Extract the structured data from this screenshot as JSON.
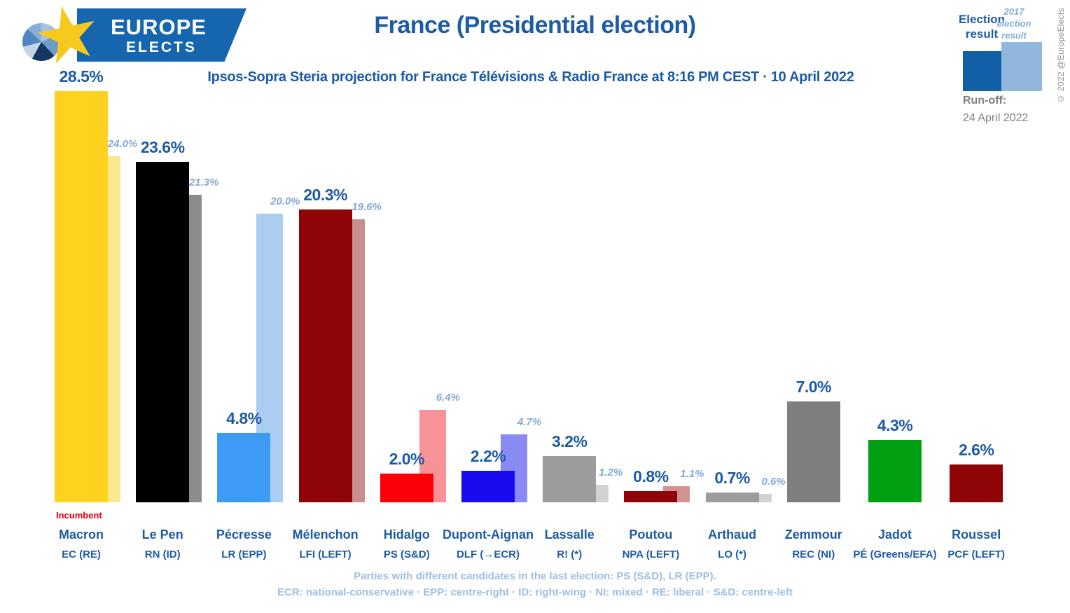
{
  "logo": {
    "line1": "EUROPE",
    "line2": "ELECTS"
  },
  "header": {
    "title": "France (Presidential election)",
    "subtitle": "Ipsos-Sopra Steria projection for France Télévisions & Radio France at 8:16 PM CEST · 10 April 2022"
  },
  "legend": {
    "current_label": "Election result",
    "previous_label": "2017 election result",
    "current_color": "#1160a8",
    "previous_color": "#92b7dc",
    "runoff_label": "Run-off:",
    "runoff_date": "24 April 2022",
    "copyright": "© 2022 @EuropeElects"
  },
  "chart_data": {
    "type": "bar",
    "unit": "%",
    "ylim": [
      0,
      30
    ],
    "legend_position": "top-right",
    "grid": false,
    "series": [
      {
        "name": "Election result"
      },
      {
        "name": "2017 election result"
      }
    ],
    "candidates": [
      {
        "name": "Macron",
        "party": "EC (RE)",
        "value": 28.5,
        "value_2017": 24.0,
        "color": "#ffd21f",
        "color_2017": "#fce98f",
        "note": "Incumbent"
      },
      {
        "name": "Le Pen",
        "party": "RN (ID)",
        "value": 23.6,
        "value_2017": 21.3,
        "color": "#000000",
        "color_2017": "#8c8c8c"
      },
      {
        "name": "Pécresse",
        "party": "LR (EPP)",
        "value": 4.8,
        "value_2017": 20.0,
        "color": "#3d9bf5",
        "color_2017": "#abcdf2"
      },
      {
        "name": "Mélenchon",
        "party": "LFI (LEFT)",
        "value": 20.3,
        "value_2017": 19.6,
        "color": "#8f0407",
        "color_2017": "#c98e8e"
      },
      {
        "name": "Hidalgo",
        "party": "PS (S&D)",
        "value": 2.0,
        "value_2017": 6.4,
        "color": "#fb0006",
        "color_2017": "#f79397"
      },
      {
        "name": "Dupont-Aignan",
        "party": "DLF (→ECR)",
        "value": 2.2,
        "value_2017": 4.7,
        "color": "#1a0aee",
        "color_2017": "#8a8af5"
      },
      {
        "name": "Lassalle",
        "party": "R! (*)",
        "value": 3.2,
        "value_2017": 1.2,
        "color": "#9c9c9c",
        "color_2017": "#d2d2d2"
      },
      {
        "name": "Poutou",
        "party": "NPA (LEFT)",
        "value": 0.8,
        "value_2017": 1.1,
        "color": "#8f0407",
        "color_2017": "#d29292"
      },
      {
        "name": "Arthaud",
        "party": "LO (*)",
        "value": 0.7,
        "value_2017": 0.6,
        "color": "#9c9c9c",
        "color_2017": "#d2d2d2"
      },
      {
        "name": "Zemmour",
        "party": "REC (NI)",
        "value": 7.0,
        "value_2017": null,
        "color": "#7f7f7f",
        "color_2017": null
      },
      {
        "name": "Jadot",
        "party": "PÉ (Greens/EFA)",
        "value": 4.3,
        "value_2017": null,
        "color": "#00a012",
        "color_2017": null
      },
      {
        "name": "Roussel",
        "party": "PCF (LEFT)",
        "value": 2.6,
        "value_2017": null,
        "color": "#8f0407",
        "color_2017": null
      }
    ]
  },
  "footer": {
    "line1": "Parties with different candidates in the last election: PS (S&D), LR (EPP).",
    "line2": "ECR: national-conservative · EPP: centre-right · ID: right-wing · NI: mixed · RE: liberal · S&D: centre-left"
  }
}
